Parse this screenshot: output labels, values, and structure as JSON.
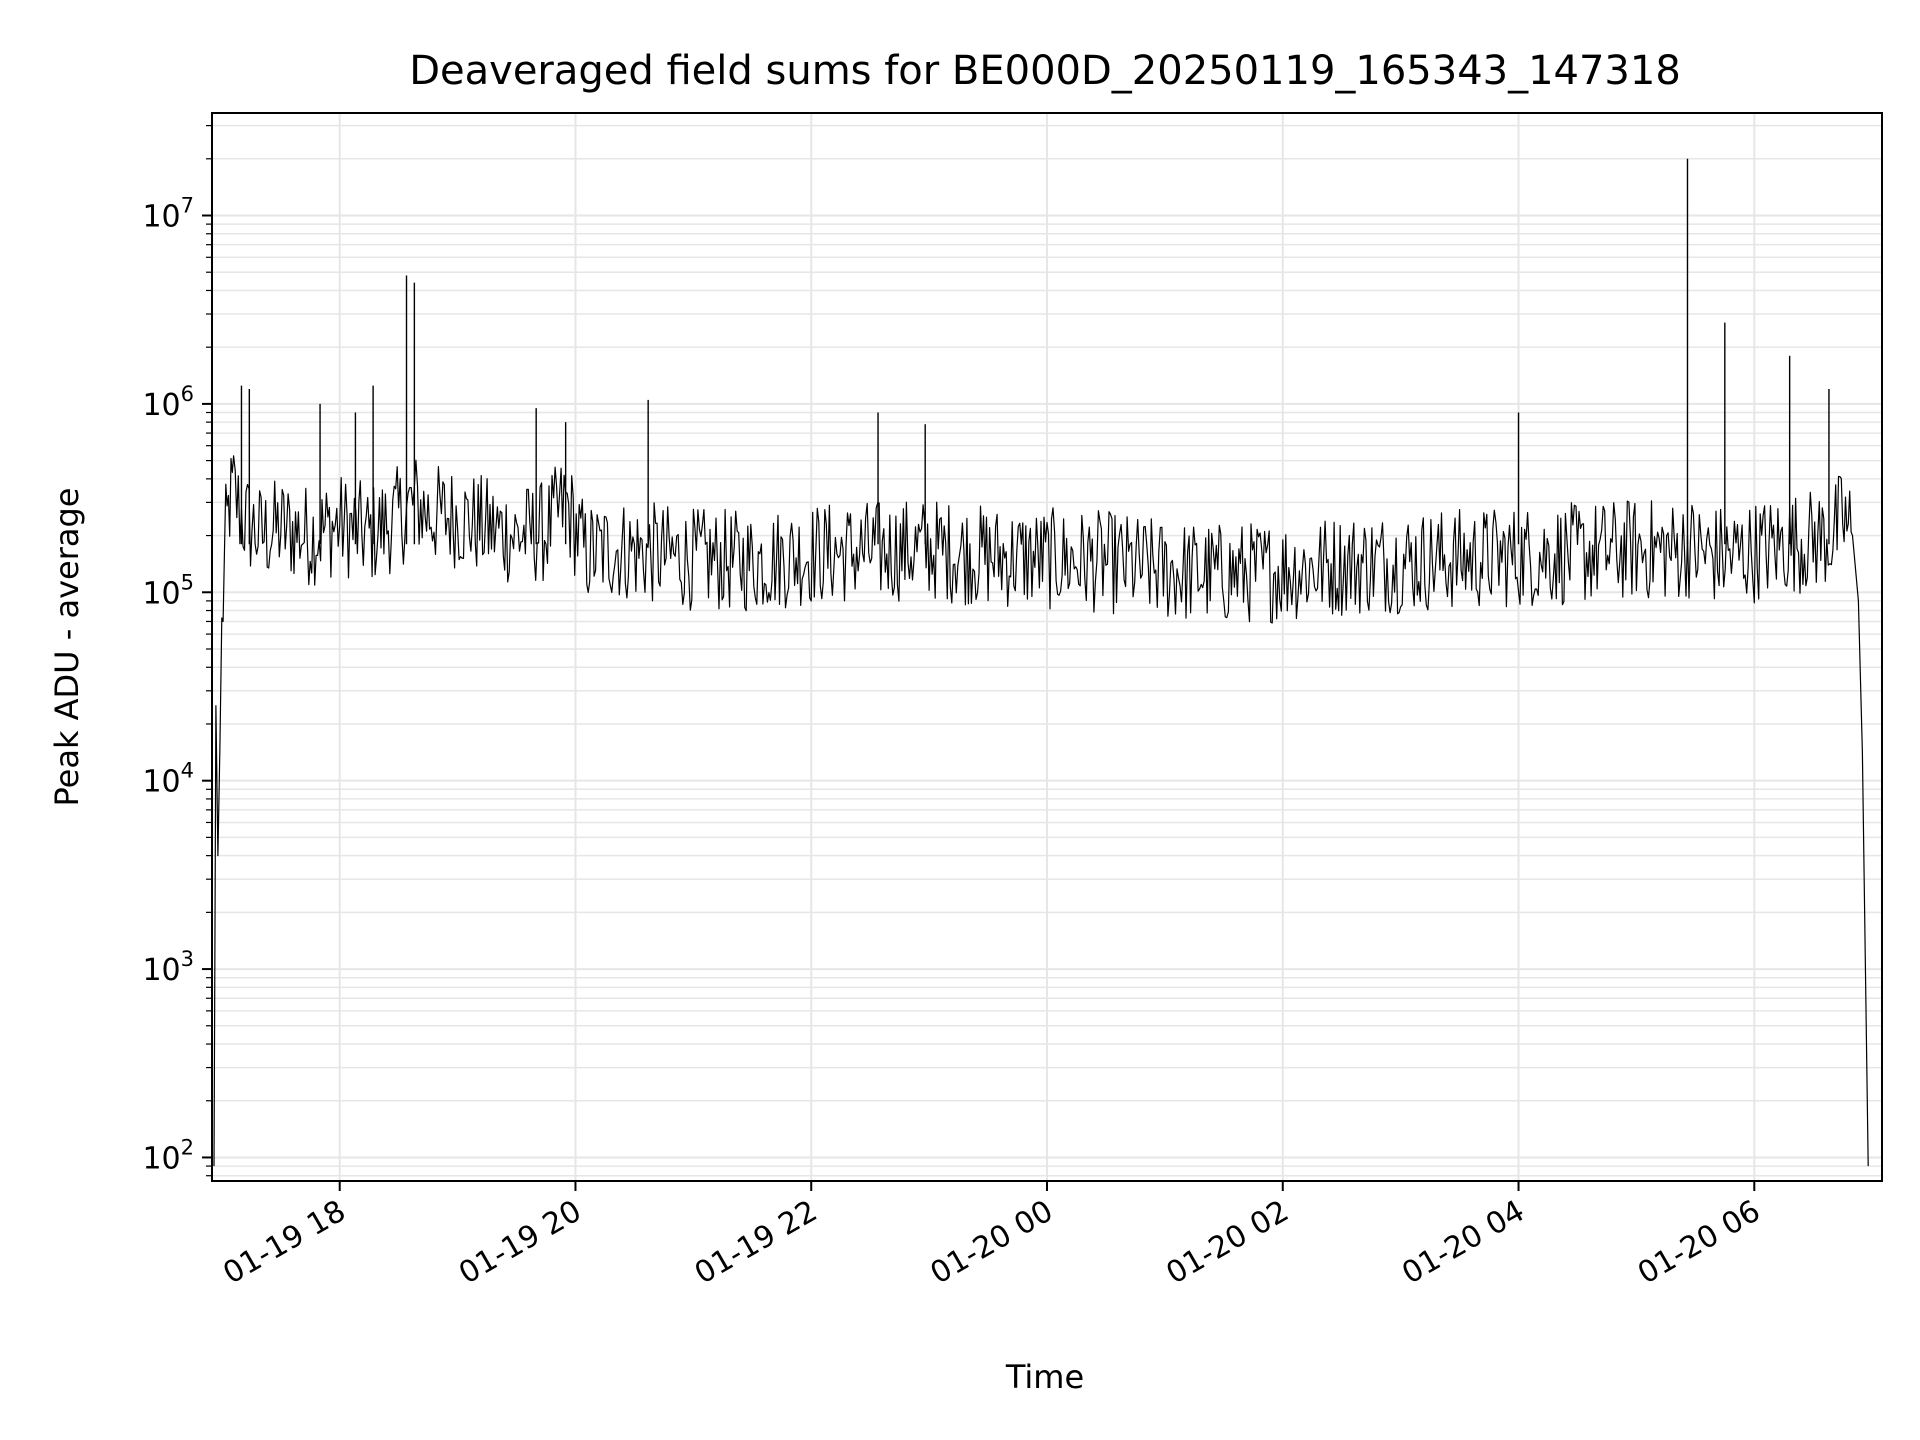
{
  "chart_data": {
    "type": "line",
    "title": "Deaveraged field sums for BE000D_20250119_165343_147318",
    "xlabel": "Time",
    "ylabel": "Peak ADU - average",
    "yscale": "log",
    "ylim": [
      75,
      35000000
    ],
    "xlim": [
      "2025-01-19 16:55",
      "2025-01-20 07:05"
    ],
    "grid": true,
    "line_color": "#000000",
    "x_ticks": [
      {
        "value": "2025-01-19 18:00",
        "label": "01-19 18"
      },
      {
        "value": "2025-01-19 20:00",
        "label": "01-19 20"
      },
      {
        "value": "2025-01-19 22:00",
        "label": "01-19 22"
      },
      {
        "value": "2025-01-20 00:00",
        "label": "01-20 00"
      },
      {
        "value": "2025-01-20 02:00",
        "label": "01-20 02"
      },
      {
        "value": "2025-01-20 04:00",
        "label": "01-20 04"
      },
      {
        "value": "2025-01-20 06:00",
        "label": "01-20 06"
      }
    ],
    "y_ticks": [
      {
        "value": 100,
        "base": "10",
        "exp": "2"
      },
      {
        "value": 1000,
        "base": "10",
        "exp": "3"
      },
      {
        "value": 10000,
        "base": "10",
        "exp": "4"
      },
      {
        "value": 100000,
        "base": "10",
        "exp": "5"
      },
      {
        "value": 1000000,
        "base": "10",
        "exp": "6"
      },
      {
        "value": 10000000,
        "base": "10",
        "exp": "7"
      }
    ],
    "series": [
      {
        "x": [
          "2025-01-19 16:56",
          "2025-01-19 16:57",
          "2025-01-19 16:58",
          "2025-01-19 16:59",
          "2025-01-19 17:00",
          "2025-01-19 17:02",
          "2025-01-19 17:04",
          "2025-01-19 17:06",
          "2025-01-19 17:10",
          "2025-01-19 17:20",
          "2025-01-19 17:30",
          "2025-01-19 17:45",
          "2025-01-19 18:00",
          "2025-01-19 18:15",
          "2025-01-19 18:30",
          "2025-01-19 18:38",
          "2025-01-19 18:42",
          "2025-01-19 18:45",
          "2025-01-19 19:00",
          "2025-01-19 19:15",
          "2025-01-19 19:30",
          "2025-01-19 19:45",
          "2025-01-19 19:55",
          "2025-01-19 20:05",
          "2025-01-19 20:20",
          "2025-01-19 20:40",
          "2025-01-19 21:00",
          "2025-01-19 21:30",
          "2025-01-19 22:00",
          "2025-01-19 22:30",
          "2025-01-19 23:00",
          "2025-01-19 23:30",
          "2025-01-20 00:00",
          "2025-01-20 00:30",
          "2025-01-20 01:00",
          "2025-01-20 01:30",
          "2025-01-20 02:00",
          "2025-01-20 02:30",
          "2025-01-20 03:00",
          "2025-01-20 03:30",
          "2025-01-20 04:00",
          "2025-01-20 04:30",
          "2025-01-20 05:00",
          "2025-01-20 05:20",
          "2025-01-20 05:26",
          "2025-01-20 05:35",
          "2025-01-20 05:46",
          "2025-01-20 06:00",
          "2025-01-20 06:15",
          "2025-01-20 06:30",
          "2025-01-20 06:40",
          "2025-01-20 06:45",
          "2025-01-20 06:50",
          "2025-01-20 06:53",
          "2025-01-20 06:55",
          "2025-01-20 06:58"
        ],
        "y": [
          90,
          25000,
          4000,
          15000,
          60000,
          200000,
          300000,
          350000,
          250000,
          200000,
          220000,
          200000,
          230000,
          200000,
          250000,
          300000,
          280000,
          260000,
          250000,
          220000,
          200000,
          210000,
          300000,
          160000,
          170000,
          160000,
          150000,
          145000,
          160000,
          165000,
          170000,
          155000,
          150000,
          145000,
          130000,
          125000,
          130000,
          140000,
          145000,
          150000,
          155000,
          160000,
          170000,
          165000,
          175000,
          160000,
          155000,
          165000,
          180000,
          190000,
          200000,
          250000,
          200000,
          90000,
          14000,
          90
        ]
      }
    ],
    "spikes": [
      {
        "x": "2025-01-19 17:10",
        "y": 1250000
      },
      {
        "x": "2025-01-19 17:14",
        "y": 1200000
      },
      {
        "x": "2025-01-19 17:50",
        "y": 1000000
      },
      {
        "x": "2025-01-19 18:08",
        "y": 900000
      },
      {
        "x": "2025-01-19 18:17",
        "y": 1250000
      },
      {
        "x": "2025-01-19 18:34",
        "y": 4800000
      },
      {
        "x": "2025-01-19 18:38",
        "y": 4400000
      },
      {
        "x": "2025-01-19 19:40",
        "y": 950000
      },
      {
        "x": "2025-01-19 19:55",
        "y": 800000
      },
      {
        "x": "2025-01-19 20:37",
        "y": 1050000
      },
      {
        "x": "2025-01-19 22:34",
        "y": 900000
      },
      {
        "x": "2025-01-19 22:58",
        "y": 780000
      },
      {
        "x": "2025-01-20 04:00",
        "y": 900000
      },
      {
        "x": "2025-01-20 05:26",
        "y": 20000000
      },
      {
        "x": "2025-01-20 05:45",
        "y": 2700000
      },
      {
        "x": "2025-01-20 06:18",
        "y": 1800000
      },
      {
        "x": "2025-01-20 06:38",
        "y": 1200000
      }
    ]
  }
}
